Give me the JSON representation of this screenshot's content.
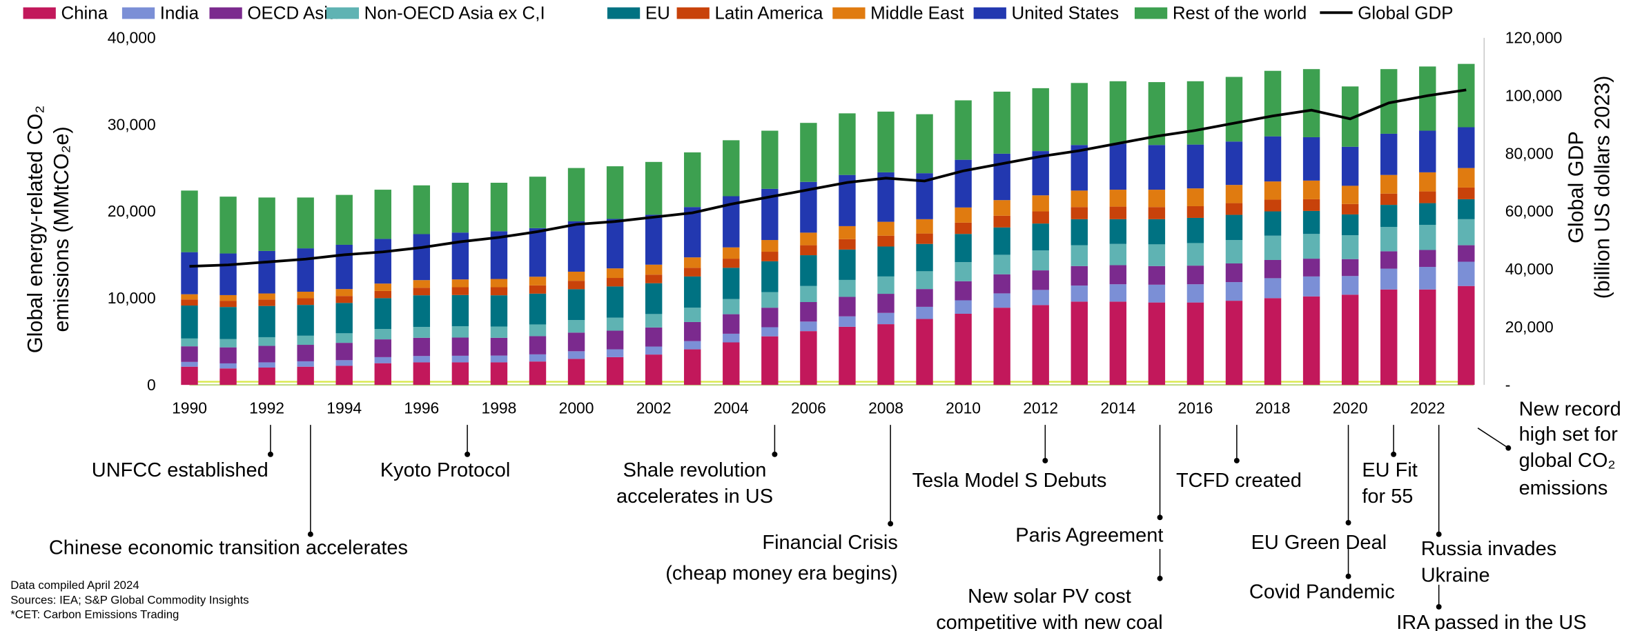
{
  "chart_data": {
    "type": "bar",
    "stacked": true,
    "categories": [
      "1990",
      null,
      "1992",
      null,
      "1994",
      null,
      "1996",
      null,
      "1998",
      null,
      "2000",
      null,
      "2002",
      null,
      "2004",
      null,
      "2006",
      null,
      "2008",
      null,
      "2010",
      null,
      "2012",
      null,
      "2014",
      null,
      "2016",
      null,
      "2018",
      null,
      "2020",
      null,
      "2022",
      null
    ],
    "ylabel": [
      "Global energy-related CO₂",
      "emissions  (MMtCO₂e)"
    ],
    "y2label": [
      "Global GDP",
      "(billion US dollars  2023)"
    ],
    "ylim": [
      0,
      40000
    ],
    "yticks": [
      {
        "value": 0,
        "label": "0"
      },
      {
        "value": 10000,
        "label": "10,000"
      },
      {
        "value": 20000,
        "label": "20,000"
      },
      {
        "value": 30000,
        "label": "30,000"
      },
      {
        "value": 40000,
        "label": "40,000"
      }
    ],
    "y2lim": [
      0,
      120000
    ],
    "y2ticks": [
      {
        "value": 0,
        "label": "-"
      },
      {
        "value": 20000,
        "label": "20,000"
      },
      {
        "value": 40000,
        "label": "40,000"
      },
      {
        "value": 60000,
        "label": "60,000"
      },
      {
        "value": 80000,
        "label": "80,000"
      },
      {
        "value": 100000,
        "label": "100,000"
      },
      {
        "value": 120000,
        "label": "120,000"
      }
    ],
    "grid": false,
    "legend": "top",
    "series": [
      {
        "name": "China",
        "color": "#c2185b",
        "values": [
          2100,
          1900,
          2000,
          2100,
          2200,
          2500,
          2600,
          2600,
          2600,
          2700,
          3000,
          3200,
          3500,
          4100,
          4900,
          5600,
          6200,
          6700,
          7000,
          7600,
          8200,
          8900,
          9200,
          9600,
          9600,
          9500,
          9500,
          9700,
          10000,
          10200,
          10400,
          11000,
          11000,
          11400
        ]
      },
      {
        "name": "India",
        "color": "#7b8fd6",
        "values": [
          550,
          580,
          600,
          620,
          650,
          700,
          730,
          760,
          780,
          820,
          880,
          900,
          920,
          950,
          1000,
          1050,
          1100,
          1200,
          1300,
          1400,
          1550,
          1650,
          1750,
          1850,
          2000,
          2050,
          2100,
          2150,
          2300,
          2300,
          2150,
          2400,
          2600,
          2800
        ]
      },
      {
        "name": "OECD Asia",
        "color": "#7b2a8e",
        "values": [
          1800,
          1850,
          1900,
          1900,
          2000,
          2050,
          2100,
          2100,
          2050,
          2100,
          2150,
          2150,
          2200,
          2200,
          2250,
          2250,
          2250,
          2250,
          2200,
          2050,
          2200,
          2200,
          2250,
          2250,
          2200,
          2150,
          2150,
          2150,
          2100,
          2050,
          1950,
          2000,
          1950,
          1900
        ]
      },
      {
        "name": "Non-OECD Asia ex C,I",
        "color": "#5fb3b3",
        "values": [
          900,
          950,
          1000,
          1050,
          1100,
          1200,
          1250,
          1300,
          1300,
          1350,
          1450,
          1500,
          1550,
          1650,
          1750,
          1800,
          1850,
          1950,
          2000,
          2050,
          2200,
          2250,
          2300,
          2400,
          2450,
          2500,
          2600,
          2700,
          2800,
          2850,
          2750,
          2800,
          2900,
          3000
        ]
      },
      {
        "name": "EU",
        "color": "#007282",
        "values": [
          3800,
          3700,
          3600,
          3550,
          3500,
          3550,
          3650,
          3600,
          3600,
          3550,
          3550,
          3600,
          3550,
          3600,
          3600,
          3550,
          3550,
          3500,
          3450,
          3150,
          3250,
          3150,
          3100,
          3000,
          2850,
          2900,
          2900,
          2900,
          2800,
          2650,
          2400,
          2550,
          2500,
          2300
        ]
      },
      {
        "name": "Latin America",
        "color": "#c8420a",
        "values": [
          700,
          720,
          740,
          770,
          800,
          830,
          870,
          900,
          930,
          950,
          970,
          980,
          990,
          1000,
          1050,
          1100,
          1150,
          1200,
          1250,
          1200,
          1300,
          1350,
          1400,
          1400,
          1450,
          1400,
          1350,
          1350,
          1350,
          1350,
          1200,
          1300,
          1350,
          1350
        ]
      },
      {
        "name": "Middle East",
        "color": "#e07b10",
        "values": [
          600,
          650,
          700,
          750,
          800,
          850,
          880,
          900,
          950,
          1000,
          1050,
          1100,
          1150,
          1200,
          1300,
          1350,
          1450,
          1500,
          1600,
          1650,
          1750,
          1800,
          1850,
          1900,
          1950,
          2000,
          2050,
          2100,
          2100,
          2150,
          2100,
          2150,
          2200,
          2250
        ]
      },
      {
        "name": "United States",
        "color": "#2238b0",
        "values": [
          4850,
          4800,
          4900,
          5000,
          5100,
          5150,
          5300,
          5400,
          5500,
          5600,
          5800,
          5700,
          5750,
          5800,
          5900,
          5900,
          5850,
          5900,
          5700,
          5300,
          5500,
          5350,
          5100,
          5250,
          5300,
          5150,
          5050,
          5000,
          5200,
          5000,
          4500,
          4750,
          4800,
          4700
        ]
      },
      {
        "name": "Rest of the world",
        "color": "#3da050",
        "values": [
          7100,
          6550,
          6160,
          5860,
          5750,
          5670,
          5620,
          5740,
          5590,
          5930,
          6150,
          6070,
          6090,
          6300,
          6450,
          6700,
          6800,
          7100,
          7000,
          6800,
          6850,
          7150,
          7250,
          7150,
          7200,
          7250,
          7300,
          7450,
          7550,
          7850,
          6950,
          7450,
          7400,
          7300
        ]
      },
      {
        "name": "Global GDP",
        "color": "#000000",
        "type": "line",
        "axis": "y2",
        "values": [
          41000,
          41500,
          42500,
          43500,
          45000,
          46000,
          47500,
          49500,
          51000,
          53000,
          55500,
          56500,
          58000,
          59500,
          62500,
          65000,
          67500,
          70000,
          71500,
          70500,
          74000,
          76500,
          79000,
          81000,
          83500,
          86000,
          88000,
          90500,
          93000,
          95000,
          92000,
          97500,
          100000,
          102000
        ]
      }
    ],
    "annotations": [
      [
        "UNFCC established"
      ],
      [
        "Chinese economic transition accelerates"
      ],
      [
        "Kyoto Protocol"
      ],
      [
        "Shale revolution",
        "accelerates in US"
      ],
      [
        "Financial Crisis",
        "(cheap money era begins)"
      ],
      [
        "Tesla Model S Debuts"
      ],
      [
        "Paris Agreement"
      ],
      [
        "New solar PV cost",
        "competitive with new coal"
      ],
      [
        "TCFD created"
      ],
      [
        "EU Green Deal"
      ],
      [
        "Covid Pandemic"
      ],
      [
        "EU Fit",
        "for 55"
      ],
      [
        "Russia invades",
        "Ukraine"
      ],
      [
        "IRA passed in the US"
      ],
      [
        "New record",
        "high set for",
        "global CO₂",
        "emissions"
      ]
    ],
    "footnotes": [
      "Data compiled April 2024",
      "Sources: IEA; S&P Global Commodity Insights",
      "*CET: Carbon Emissions Trading"
    ]
  }
}
